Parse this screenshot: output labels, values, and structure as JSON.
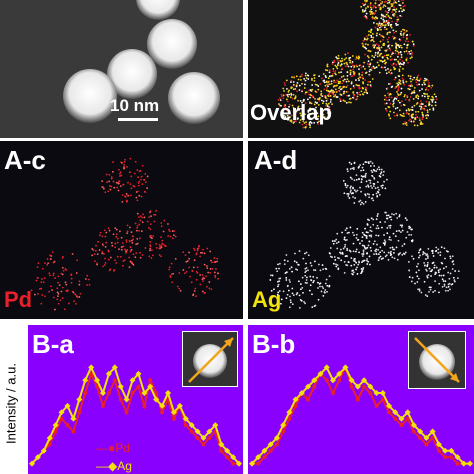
{
  "figure": {
    "panel_a_scale_label": "10 nm",
    "panel_b_label": "Overlap",
    "panel_c_label": "A-c",
    "panel_c_element": "Pd",
    "panel_d_label": "A-d",
    "panel_d_element": "Ag",
    "panel_e_label": "B-a",
    "panel_f_label": "B-b",
    "legend_pd": "Pd",
    "legend_ag": "Ag",
    "y_axis_label": "Intensity / a.u."
  },
  "colors": {
    "pd": "#e8202a",
    "ag": "#f2e10c",
    "plot_background": "#8a00ff",
    "arrow": "#f2a41c"
  },
  "chart_data": [
    {
      "type": "line",
      "panel": "B-a",
      "ylabel": "Intensity / a.u.",
      "series": [
        {
          "name": "Pd",
          "values": [
            1,
            2,
            3,
            4,
            6,
            8,
            7,
            6,
            9,
            12,
            15,
            13,
            10,
            12,
            14,
            11,
            9,
            12,
            13,
            10,
            14,
            12,
            9,
            11,
            8,
            10,
            7,
            6,
            5,
            4,
            5,
            6,
            3,
            2,
            1,
            1
          ]
        },
        {
          "name": "Ag",
          "values": [
            1,
            2,
            3,
            5,
            7,
            9,
            10,
            8,
            11,
            14,
            16,
            14,
            12,
            15,
            16,
            13,
            11,
            14,
            15,
            12,
            13,
            11,
            10,
            12,
            9,
            10,
            8,
            7,
            6,
            5,
            6,
            7,
            4,
            3,
            2,
            1
          ]
        }
      ]
    },
    {
      "type": "line",
      "panel": "B-b",
      "series": [
        {
          "name": "Pd",
          "values": [
            1,
            1,
            2,
            3,
            4,
            6,
            8,
            10,
            12,
            11,
            13,
            15,
            14,
            12,
            14,
            16,
            13,
            11,
            13,
            12,
            10,
            11,
            9,
            8,
            7,
            8,
            6,
            5,
            4,
            5,
            3,
            2,
            2,
            1,
            1,
            1
          ]
        },
        {
          "name": "Ag",
          "values": [
            1,
            2,
            3,
            4,
            5,
            7,
            9,
            11,
            12,
            13,
            14,
            15,
            16,
            14,
            15,
            16,
            14,
            13,
            14,
            13,
            12,
            12,
            10,
            9,
            8,
            9,
            7,
            6,
            5,
            6,
            4,
            3,
            3,
            2,
            1,
            1
          ]
        }
      ]
    }
  ]
}
